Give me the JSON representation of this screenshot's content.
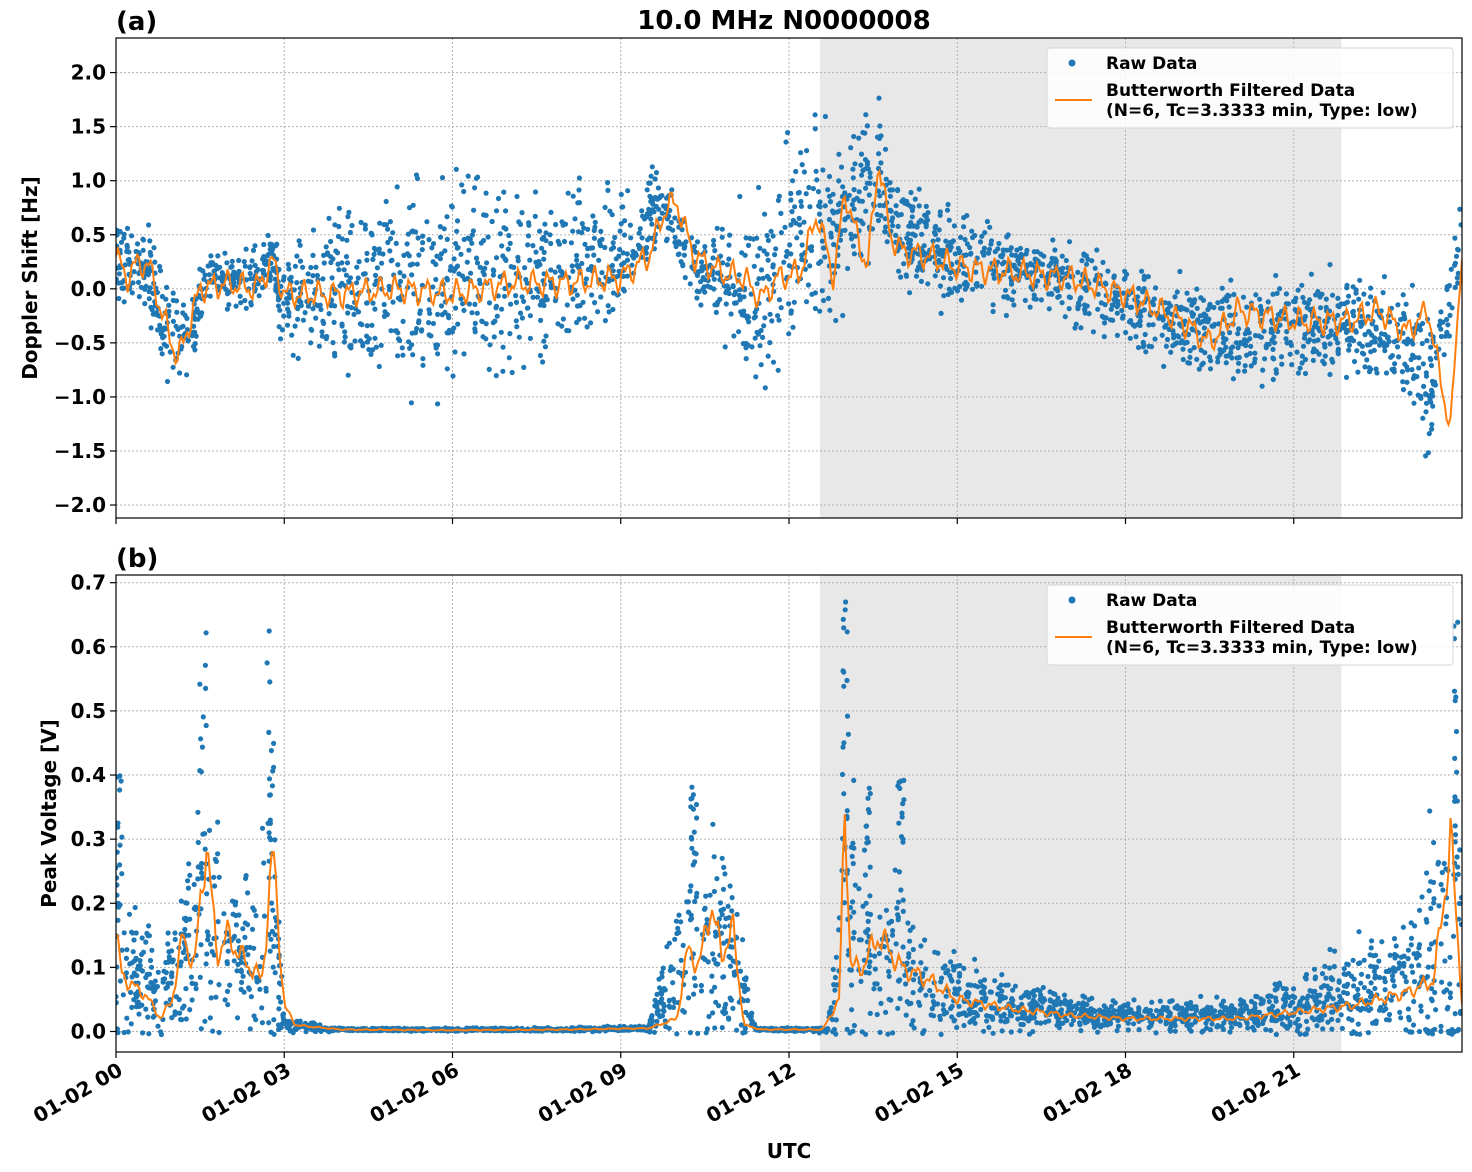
{
  "figure": {
    "title": "10.0 MHz N0000008",
    "xlabel": "UTC",
    "shade_color": "#e8e8e8",
    "raw_color": "#1f77b4",
    "filtered_color": "#ff7f0e"
  },
  "chart_data": [
    {
      "type": "scatter",
      "panel_label": "(a)",
      "ylabel": "Doppler Shift [Hz]",
      "ylim": [
        -2.12,
        2.32
      ],
      "xlim_hours": [
        0,
        24
      ],
      "yticks": [
        -2.0,
        -1.5,
        -1.0,
        -0.5,
        0.0,
        0.5,
        1.0,
        1.5,
        2.0
      ],
      "ytick_labels": [
        "−2.0",
        "−1.5",
        "−1.0",
        "−0.5",
        "0.0",
        "0.5",
        "1.0",
        "1.5",
        "2.0"
      ],
      "shaded_region_hours": [
        12.55,
        21.85
      ],
      "grid": true,
      "legend_position": "upper-right",
      "legend": [
        "Raw Data",
        "Butterworth Filtered Data",
        "(N=6, Tc=3.3333 min, Type: low)"
      ],
      "series": [
        {
          "name": "Raw Data",
          "style": "points",
          "x_hours": [
            0,
            0.5,
            0.9,
            1.3,
            1.6,
            2.2,
            2.8,
            3.0,
            4.0,
            5.0,
            6.0,
            7.0,
            8.0,
            9.0,
            9.7,
            10.3,
            11.0,
            11.5,
            12.0,
            12.5,
            12.9,
            13.3,
            13.6,
            14.0,
            15.0,
            16.0,
            17.0,
            18.0,
            19.0,
            20.0,
            21.0,
            22.0,
            23.0,
            23.4,
            24.0
          ],
          "y_center": [
            0.25,
            0.25,
            -0.4,
            -0.5,
            0.1,
            0.05,
            0.25,
            -0.1,
            -0.02,
            0.02,
            0.05,
            0.08,
            0.12,
            0.3,
            0.8,
            0.2,
            0.05,
            -0.15,
            0.3,
            0.6,
            0.6,
            0.9,
            1.1,
            0.5,
            0.25,
            0.2,
            0.05,
            -0.15,
            -0.3,
            -0.4,
            -0.35,
            -0.3,
            -0.5,
            -1.0,
            0.5
          ],
          "y_spread": [
            0.35,
            0.3,
            0.5,
            0.4,
            0.2,
            0.2,
            0.25,
            0.4,
            0.6,
            0.8,
            0.8,
            0.7,
            0.6,
            0.5,
            0.3,
            0.2,
            0.5,
            0.8,
            0.8,
            0.7,
            0.6,
            0.6,
            0.5,
            0.4,
            0.35,
            0.3,
            0.3,
            0.3,
            0.35,
            0.35,
            0.35,
            0.4,
            0.5,
            0.5,
            0.3
          ]
        },
        {
          "name": "Butterworth Filtered Data",
          "style": "line",
          "x_hours": [
            0,
            0.2,
            0.4,
            0.6,
            0.8,
            1.0,
            1.1,
            1.2,
            1.5,
            2.0,
            2.5,
            2.8,
            3.0,
            3.5,
            4.0,
            5.0,
            6.0,
            7.0,
            8.0,
            9.0,
            9.5,
            9.8,
            10.0,
            10.3,
            10.8,
            11.2,
            11.5,
            11.8,
            12.2,
            12.5,
            12.8,
            13.0,
            13.2,
            13.4,
            13.6,
            13.8,
            14.0,
            14.5,
            15.0,
            16.0,
            17.0,
            18.0,
            19.0,
            19.5,
            20.0,
            21.0,
            22.0,
            22.5,
            23.0,
            23.4,
            23.6,
            23.8,
            24.0
          ],
          "y": [
            0.3,
            0.1,
            0.25,
            0.2,
            -0.2,
            -0.5,
            -0.65,
            -0.5,
            0.0,
            0.05,
            0.0,
            0.25,
            -0.05,
            -0.05,
            -0.05,
            0.0,
            -0.05,
            0.05,
            0.05,
            0.1,
            0.3,
            0.75,
            0.8,
            0.3,
            0.15,
            0.1,
            -0.1,
            0.1,
            0.15,
            0.7,
            0.1,
            0.9,
            0.5,
            0.2,
            1.2,
            0.5,
            0.35,
            0.3,
            0.2,
            0.15,
            0.1,
            -0.05,
            -0.3,
            -0.5,
            -0.2,
            -0.3,
            -0.3,
            -0.2,
            -0.4,
            -0.2,
            -0.8,
            -1.3,
            0.4
          ]
        }
      ]
    },
    {
      "type": "scatter",
      "panel_label": "(b)",
      "ylabel": "Peak Voltage [V]",
      "ylim": [
        -0.032,
        0.712
      ],
      "xlim_hours": [
        0,
        24
      ],
      "yticks": [
        0.0,
        0.1,
        0.2,
        0.3,
        0.4,
        0.5,
        0.6,
        0.7
      ],
      "ytick_labels": [
        "0.0",
        "0.1",
        "0.2",
        "0.3",
        "0.4",
        "0.5",
        "0.6",
        "0.7"
      ],
      "xticks_hours": [
        0,
        3,
        6,
        9,
        12,
        15,
        18,
        21
      ],
      "xtick_labels": [
        "01-02 00",
        "01-02 03",
        "01-02 06",
        "01-02 09",
        "01-02 12",
        "01-02 15",
        "01-02 18",
        "01-02 21"
      ],
      "shaded_region_hours": [
        12.55,
        21.85
      ],
      "grid": true,
      "legend_position": "upper-right",
      "legend": [
        "Raw Data",
        "Butterworth Filtered Data",
        "(N=6, Tc=3.3333 min, Type: low)"
      ],
      "series": [
        {
          "name": "Raw Data",
          "style": "points",
          "x_hours": [
            0,
            0.4,
            0.8,
            1.2,
            1.6,
            2.0,
            2.4,
            2.8,
            3.0,
            4.0,
            6.0,
            8.0,
            9.5,
            10.1,
            10.5,
            11.0,
            11.4,
            12.0,
            12.7,
            13.0,
            13.5,
            14.0,
            15.0,
            16.0,
            18.0,
            20.0,
            21.0,
            22.0,
            23.0,
            23.5,
            24.0
          ],
          "y_center": [
            0.1,
            0.08,
            0.05,
            0.12,
            0.18,
            0.13,
            0.1,
            0.15,
            0.01,
            0.003,
            0.003,
            0.003,
            0.005,
            0.12,
            0.15,
            0.12,
            0.003,
            0.003,
            0.003,
            0.2,
            0.12,
            0.1,
            0.06,
            0.04,
            0.025,
            0.025,
            0.04,
            0.06,
            0.08,
            0.1,
            0.12
          ],
          "y_spread": [
            0.12,
            0.08,
            0.06,
            0.12,
            0.2,
            0.12,
            0.1,
            0.18,
            0.01,
            0.002,
            0.002,
            0.002,
            0.004,
            0.12,
            0.15,
            0.12,
            0.002,
            0.002,
            0.004,
            0.25,
            0.12,
            0.1,
            0.05,
            0.03,
            0.02,
            0.02,
            0.04,
            0.06,
            0.08,
            0.2,
            0.15
          ],
          "peaks": [
            [
              1.55,
              0.68
            ],
            [
              2.75,
              0.65
            ],
            [
              13.0,
              0.68
            ],
            [
              13.4,
              0.41
            ],
            [
              14.0,
              0.4
            ],
            [
              10.3,
              0.44
            ],
            [
              23.9,
              0.67
            ],
            [
              0.05,
              0.45
            ]
          ]
        },
        {
          "name": "Butterworth Filtered Data",
          "style": "line",
          "x_hours": [
            0,
            0.1,
            0.3,
            0.5,
            0.8,
            1.0,
            1.2,
            1.4,
            1.6,
            1.8,
            2.0,
            2.2,
            2.4,
            2.6,
            2.8,
            3.0,
            3.2,
            4.0,
            6.0,
            8.0,
            9.5,
            10.0,
            10.2,
            10.4,
            10.6,
            10.8,
            11.0,
            11.2,
            11.5,
            12.0,
            12.6,
            12.9,
            13.0,
            13.1,
            13.3,
            13.6,
            14.0,
            14.5,
            15.0,
            16.0,
            17.0,
            18.0,
            19.0,
            20.0,
            20.5,
            21.0,
            22.0,
            22.5,
            23.0,
            23.5,
            23.8,
            24.0
          ],
          "y": [
            0.15,
            0.09,
            0.07,
            0.06,
            0.02,
            0.05,
            0.15,
            0.1,
            0.3,
            0.12,
            0.15,
            0.12,
            0.1,
            0.08,
            0.28,
            0.04,
            0.01,
            0.003,
            0.002,
            0.003,
            0.005,
            0.02,
            0.13,
            0.1,
            0.2,
            0.12,
            0.16,
            0.01,
            0.003,
            0.003,
            0.003,
            0.05,
            0.37,
            0.1,
            0.1,
            0.15,
            0.1,
            0.08,
            0.05,
            0.035,
            0.025,
            0.02,
            0.02,
            0.02,
            0.025,
            0.03,
            0.04,
            0.05,
            0.06,
            0.08,
            0.3,
            0.05
          ]
        }
      ]
    }
  ]
}
